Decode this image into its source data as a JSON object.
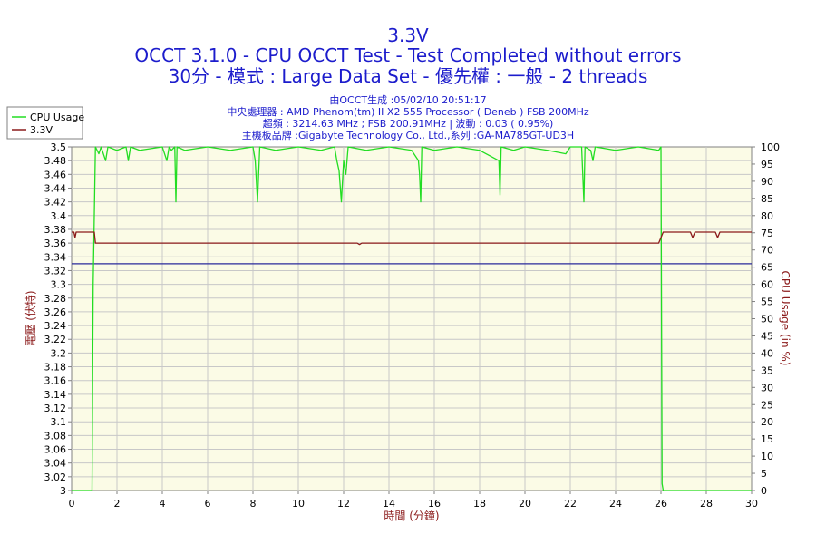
{
  "chart_data": {
    "type": "line",
    "title_lines": [
      "3.3V",
      "OCCT 3.1.0 - CPU OCCT Test - Test Completed without errors",
      "30分 - 模式 : Large Data Set - 優先權 : 一般 - 2 threads"
    ],
    "subtitle_lines": [
      "由OCCT生成 :05/02/10 20:51:17",
      "中央處理器 : AMD Phenom(tm) II X2 555 Processor ( Deneb ) FSB 200MHz",
      "超頻 : 3214.63 MHz ; FSB 200.91MHz | 波動 : 0.03 ( 0.95%)",
      "主機板品牌 :Gigabyte Technology Co., Ltd.,系列 :GA-MA785GT-UD3H"
    ],
    "xlabel": "時間 (分鐘)",
    "ylabel_left": "電壓 (伏特)",
    "ylabel_right": "CPU Usage (in %)",
    "xlim": [
      0,
      30
    ],
    "ylim_left": [
      3.0,
      3.5
    ],
    "ylim_right": [
      0,
      100
    ],
    "x_ticks": [
      "0",
      "2",
      "4",
      "6",
      "8",
      "10",
      "12",
      "14",
      "16",
      "18",
      "20",
      "22",
      "24",
      "26",
      "28",
      "30"
    ],
    "y_ticks_left": [
      "3",
      "3.02",
      "3.04",
      "3.06",
      "3.08",
      "3.1",
      "3.12",
      "3.14",
      "3.16",
      "3.18",
      "3.2",
      "3.22",
      "3.24",
      "3.26",
      "3.28",
      "3.3",
      "3.32",
      "3.34",
      "3.36",
      "3.38",
      "3.4",
      "3.42",
      "3.44",
      "3.46",
      "3.48",
      "3.5"
    ],
    "y_ticks_right": [
      "0",
      "5",
      "10",
      "15",
      "20",
      "25",
      "30",
      "35",
      "40",
      "45",
      "50",
      "55",
      "60",
      "65",
      "70",
      "75",
      "80",
      "85",
      "90",
      "95",
      "100"
    ],
    "legend": {
      "position": "top-left",
      "entries": [
        "CPU Usage",
        "3.3V"
      ]
    },
    "grid": true,
    "reference_line": {
      "axis": "left",
      "value": 3.33,
      "color": "#2a2a9c"
    },
    "series": [
      {
        "name": "CPU Usage",
        "axis": "right",
        "color": "#22dd22",
        "points": [
          [
            0,
            0
          ],
          [
            0.9,
            0
          ],
          [
            0.95,
            60
          ],
          [
            1.05,
            100
          ],
          [
            1.2,
            98
          ],
          [
            1.3,
            100
          ],
          [
            1.5,
            96
          ],
          [
            1.6,
            100
          ],
          [
            2.0,
            99
          ],
          [
            2.4,
            100
          ],
          [
            2.5,
            96
          ],
          [
            2.6,
            100
          ],
          [
            3.0,
            99
          ],
          [
            4.0,
            100
          ],
          [
            4.1,
            98
          ],
          [
            4.2,
            96
          ],
          [
            4.3,
            100
          ],
          [
            4.4,
            99
          ],
          [
            4.55,
            100
          ],
          [
            4.6,
            84
          ],
          [
            4.65,
            100
          ],
          [
            5.0,
            99
          ],
          [
            6.0,
            100
          ],
          [
            7.0,
            99
          ],
          [
            8.0,
            100
          ],
          [
            8.1,
            96
          ],
          [
            8.2,
            84
          ],
          [
            8.3,
            100
          ],
          [
            9.0,
            99
          ],
          [
            10.0,
            100
          ],
          [
            11.0,
            99
          ],
          [
            11.6,
            100
          ],
          [
            11.7,
            96
          ],
          [
            11.8,
            93
          ],
          [
            11.9,
            84
          ],
          [
            12.0,
            96
          ],
          [
            12.1,
            92
          ],
          [
            12.2,
            100
          ],
          [
            13.0,
            99
          ],
          [
            14.0,
            100
          ],
          [
            15.0,
            99
          ],
          [
            15.3,
            96
          ],
          [
            15.35,
            92
          ],
          [
            15.4,
            84
          ],
          [
            15.45,
            100
          ],
          [
            16.0,
            99
          ],
          [
            17.0,
            100
          ],
          [
            18.0,
            99
          ],
          [
            18.85,
            96
          ],
          [
            18.9,
            86
          ],
          [
            18.95,
            100
          ],
          [
            19.5,
            99
          ],
          [
            20.0,
            100
          ],
          [
            21.0,
            99
          ],
          [
            21.8,
            98
          ],
          [
            22.0,
            100
          ],
          [
            22.5,
            100
          ],
          [
            22.6,
            84
          ],
          [
            22.65,
            100
          ],
          [
            22.9,
            99
          ],
          [
            23.0,
            96
          ],
          [
            23.1,
            100
          ],
          [
            24.0,
            99
          ],
          [
            25.0,
            100
          ],
          [
            25.9,
            99
          ],
          [
            26.0,
            100
          ],
          [
            26.05,
            2
          ],
          [
            26.1,
            0
          ],
          [
            30,
            0
          ]
        ]
      },
      {
        "name": "3.3V",
        "axis": "left",
        "color": "#8b1a1a",
        "points": [
          [
            0,
            3.376
          ],
          [
            0.1,
            3.376
          ],
          [
            0.15,
            3.368
          ],
          [
            0.2,
            3.376
          ],
          [
            1.0,
            3.376
          ],
          [
            1.05,
            3.36
          ],
          [
            12.6,
            3.36
          ],
          [
            12.7,
            3.358
          ],
          [
            12.8,
            3.36
          ],
          [
            25.9,
            3.36
          ],
          [
            26.1,
            3.376
          ],
          [
            27.3,
            3.376
          ],
          [
            27.4,
            3.368
          ],
          [
            27.5,
            3.376
          ],
          [
            28.4,
            3.376
          ],
          [
            28.5,
            3.368
          ],
          [
            28.6,
            3.376
          ],
          [
            30,
            3.376
          ]
        ]
      }
    ]
  }
}
